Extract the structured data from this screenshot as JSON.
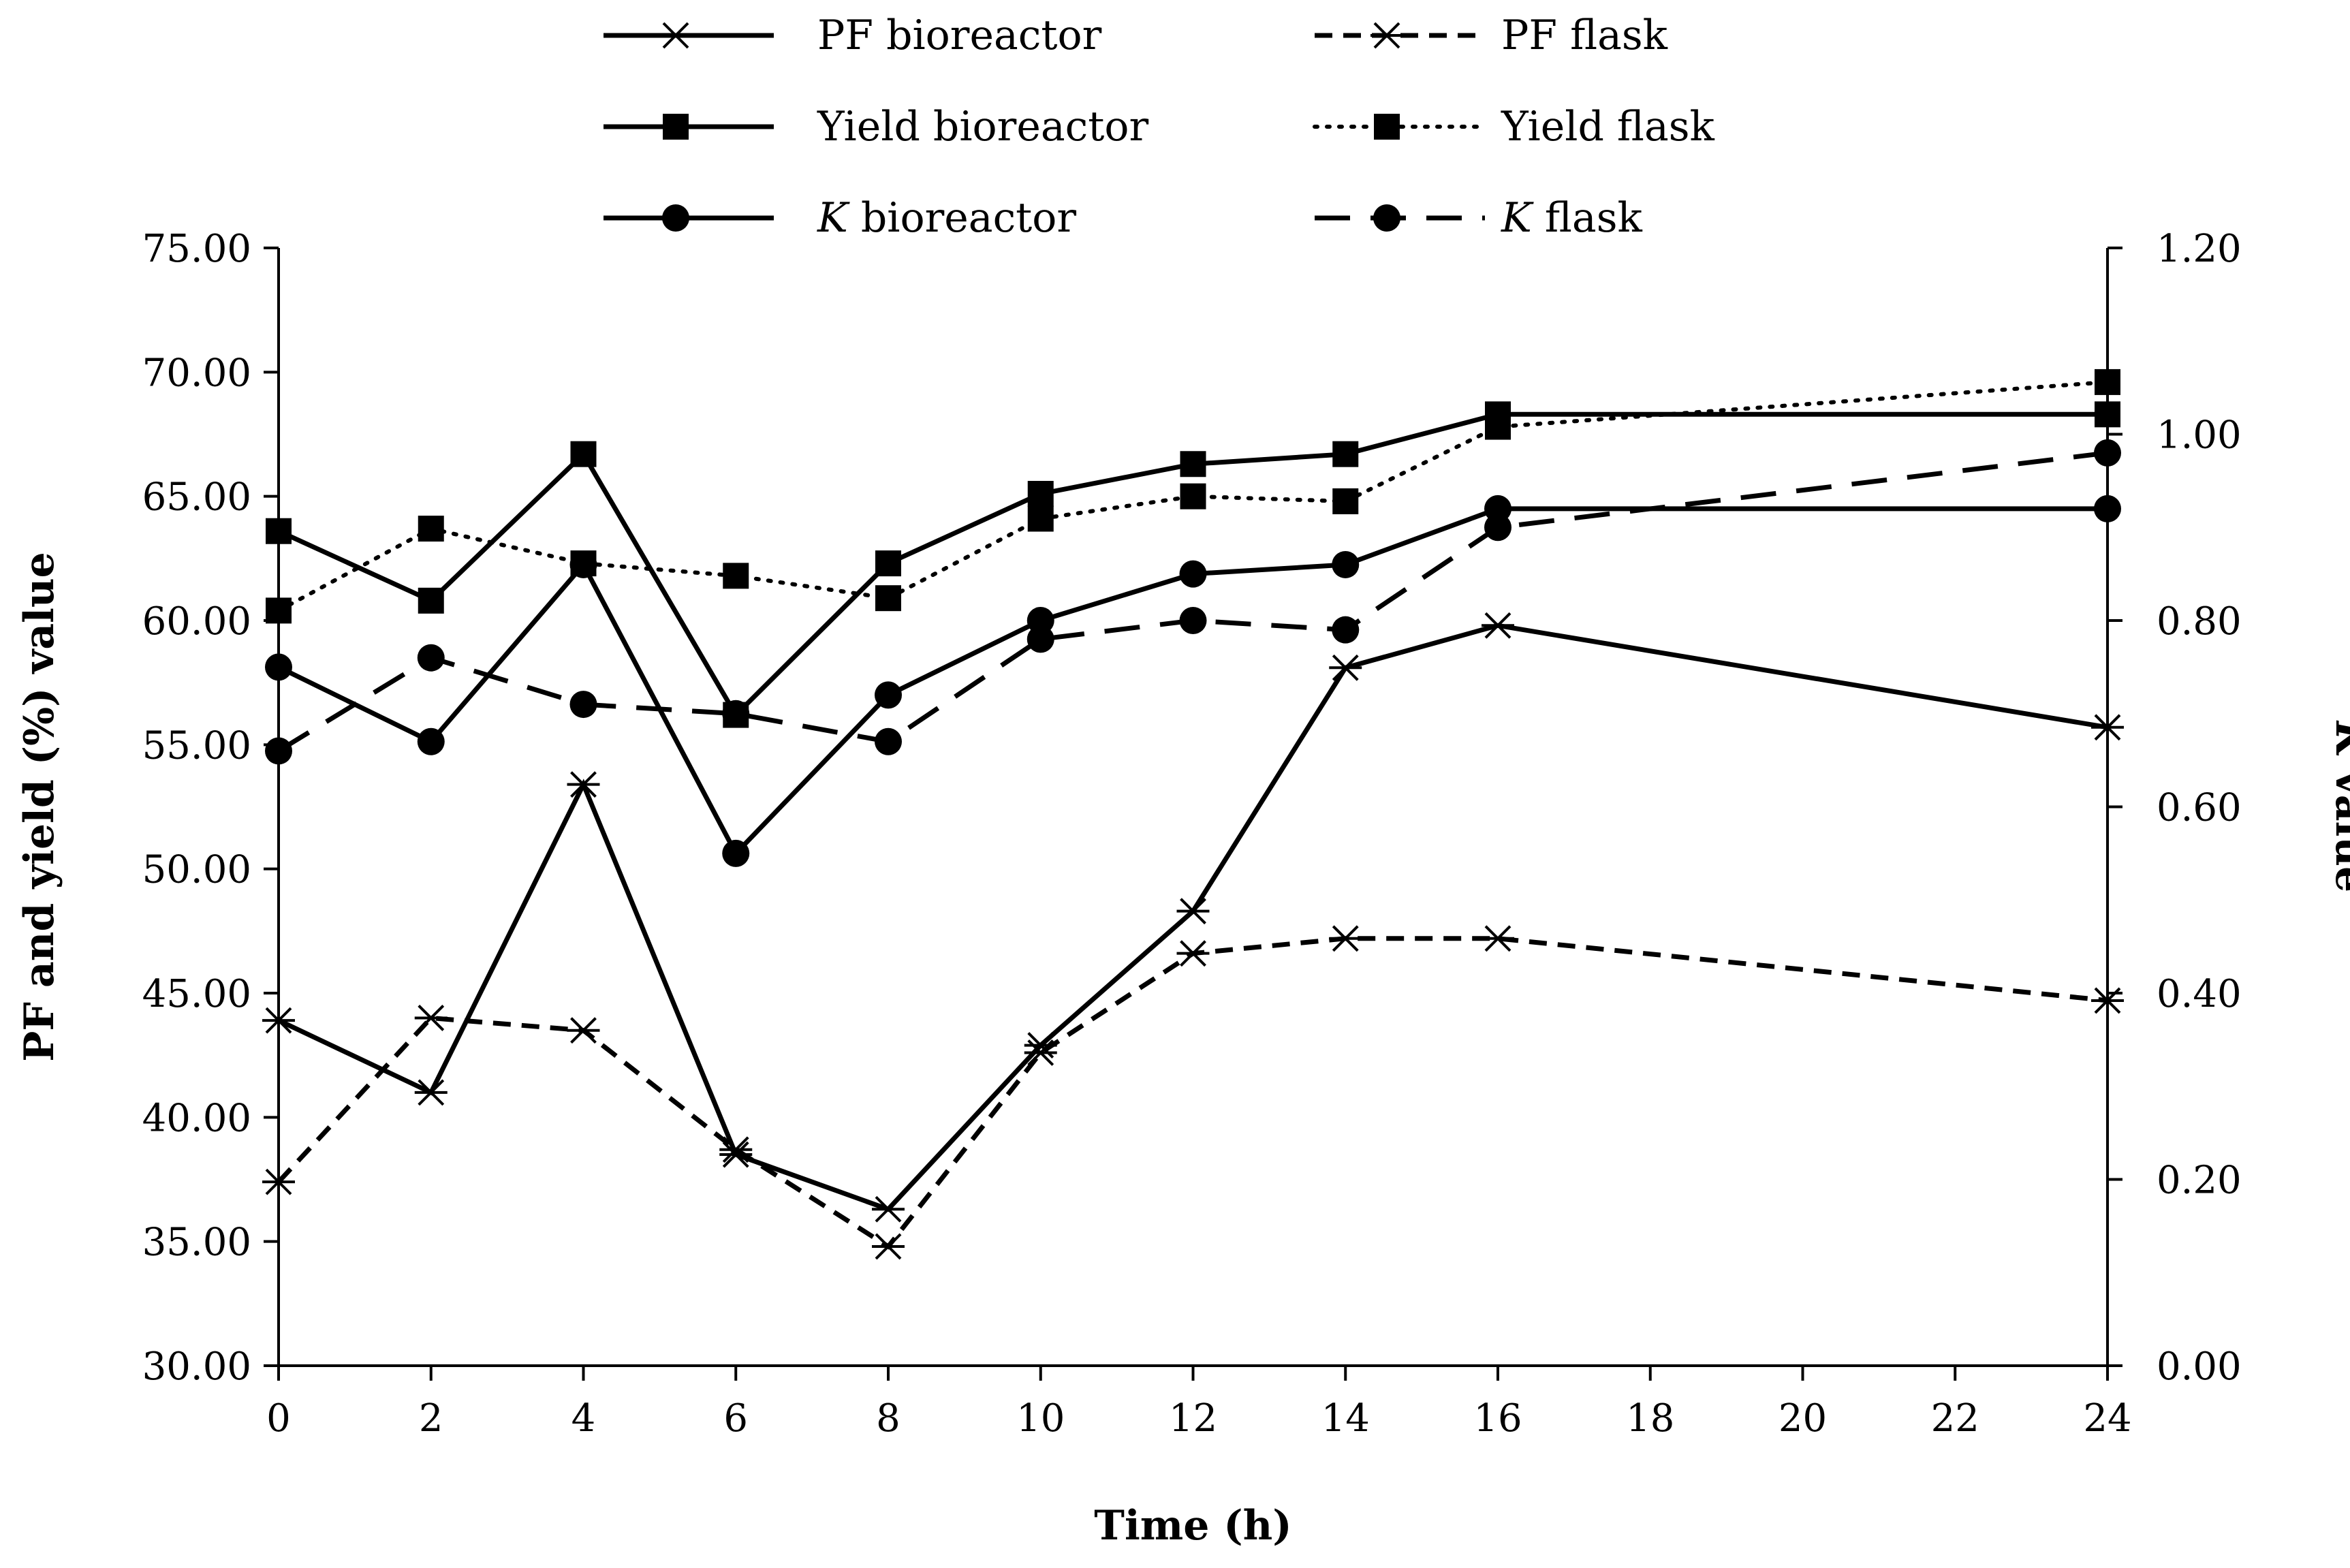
{
  "chart_data": {
    "type": "line",
    "title": "",
    "xlabel": "Time (h)",
    "ylabel_left": "PF and yield (%) value",
    "ylabel_right_italic": "K",
    "ylabel_right_rest": " value",
    "x_ticks": [
      "0",
      "2",
      "4",
      "6",
      "8",
      "10",
      "12",
      "14",
      "16",
      "18",
      "20",
      "22",
      "24"
    ],
    "y_left_ticks": [
      "30.00",
      "35.00",
      "40.00",
      "45.00",
      "50.00",
      "55.00",
      "60.00",
      "65.00",
      "70.00",
      "75.00"
    ],
    "y_right_ticks": [
      "0.00",
      "0.20",
      "0.40",
      "0.60",
      "0.80",
      "1.00",
      "1.20"
    ],
    "xlim": [
      0,
      24
    ],
    "ylim_left": [
      30,
      75
    ],
    "ylim_right": [
      0,
      1.2
    ],
    "grid": false,
    "legend_position": "top",
    "x": [
      0,
      2,
      4,
      6,
      8,
      10,
      12,
      14,
      16,
      24
    ],
    "series": [
      {
        "name": "PF bioreactor",
        "label_italic": "",
        "label_rest": "PF bioreactor",
        "axis": "left",
        "line": "solid",
        "marker": "star",
        "values": [
          43.9,
          41.0,
          53.4,
          38.5,
          36.3,
          42.9,
          48.3,
          58.1,
          59.8,
          55.7
        ]
      },
      {
        "name": "PF flask",
        "label_italic": "",
        "label_rest": "PF flask",
        "axis": "left",
        "line": "dashed",
        "marker": "star",
        "values": [
          37.4,
          44.0,
          43.5,
          38.7,
          34.8,
          42.6,
          46.6,
          47.2,
          47.2,
          44.7
        ]
      },
      {
        "name": "Yield bioreactor",
        "label_italic": "",
        "label_rest": "Yield bioreactor",
        "axis": "left",
        "line": "solid",
        "marker": "square",
        "values": [
          63.6,
          60.8,
          66.7,
          56.2,
          62.3,
          65.1,
          66.3,
          66.7,
          68.3,
          68.3
        ]
      },
      {
        "name": "Yield flask",
        "label_italic": "",
        "label_rest": "Yield flask",
        "axis": "left",
        "line": "dotted",
        "marker": "square",
        "values": [
          60.4,
          63.7,
          62.3,
          61.8,
          60.9,
          64.1,
          65.0,
          64.8,
          67.8,
          69.6
        ]
      },
      {
        "name": "K bioreactor",
        "label_italic": "K",
        "label_rest": " bioreactor",
        "axis": "right",
        "line": "solid",
        "marker": "circle",
        "values": [
          0.75,
          0.67,
          0.86,
          0.55,
          0.72,
          0.8,
          0.85,
          0.86,
          0.92,
          0.92
        ]
      },
      {
        "name": "K flask",
        "label_italic": "K",
        "label_rest": " flask",
        "axis": "right",
        "line": "longdash",
        "marker": "circle",
        "values": [
          0.66,
          0.76,
          0.71,
          0.7,
          0.67,
          0.78,
          0.8,
          0.79,
          0.9,
          0.98
        ]
      }
    ]
  }
}
